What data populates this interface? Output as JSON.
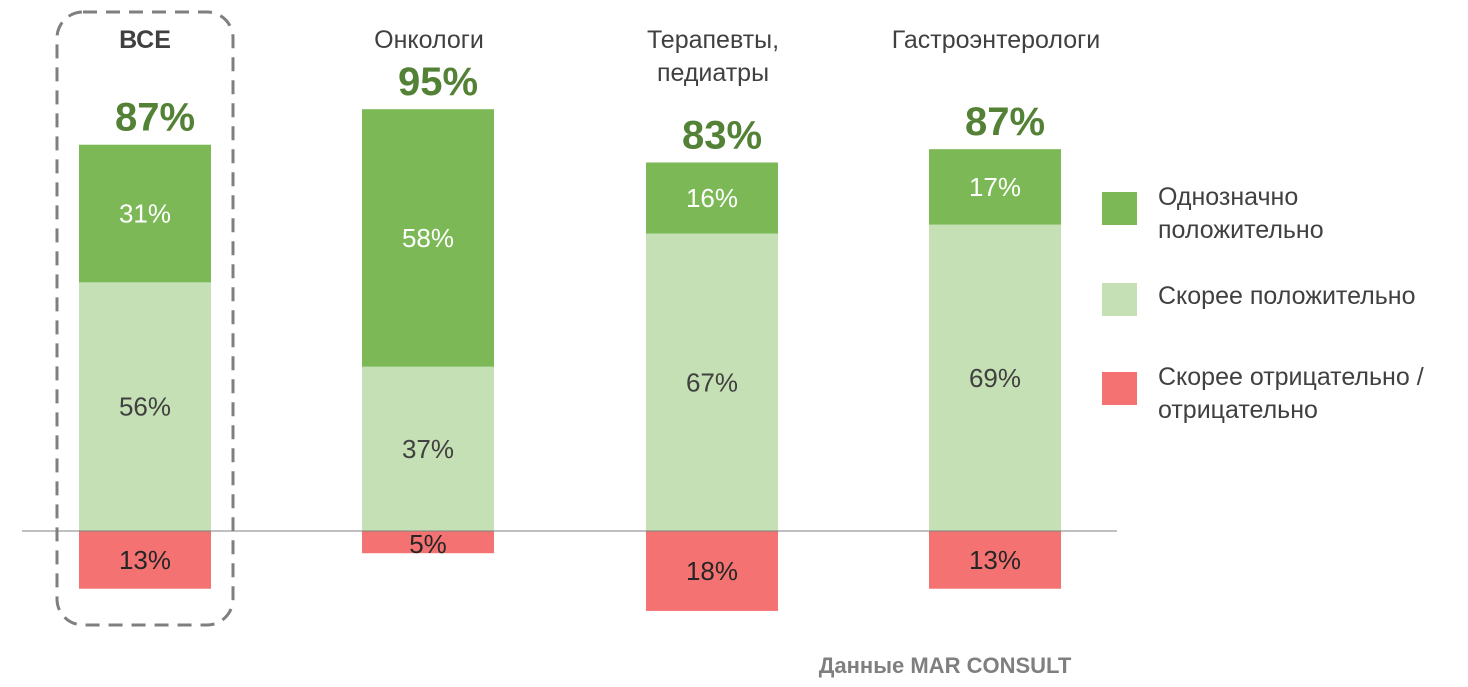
{
  "chart_data": {
    "type": "bar",
    "stacked": true,
    "categories": [
      [
        "ВСЕ"
      ],
      [
        "Онкологи"
      ],
      [
        "Терапевты,",
        "педиатры"
      ],
      [
        "Гастроэнтерологи"
      ]
    ],
    "highlighted_category": 0,
    "totals": [
      "87%",
      "95%",
      "83%",
      "87%"
    ],
    "series": [
      {
        "name": [
          "Однозначно",
          "положительно"
        ],
        "color": "#7cb956",
        "text_color": "#ffffff",
        "values": [
          31,
          58,
          16,
          17
        ],
        "labels": [
          "31%",
          "58%",
          "16%",
          "17%"
        ]
      },
      {
        "name": [
          "Скорее положительно"
        ],
        "color": "#c5e0b4",
        "text_color": "#404040",
        "values": [
          56,
          37,
          67,
          69
        ],
        "labels": [
          "56%",
          "37%",
          "67%",
          "69%"
        ]
      },
      {
        "name": [
          "Скорее отрицательно /",
          "отрицательно"
        ],
        "color": "#f47272",
        "text_color": "#262626",
        "values": [
          -13,
          -5,
          -18,
          -13
        ],
        "labels": [
          "13%",
          "5%",
          "18%",
          "13%"
        ]
      }
    ],
    "total_color": "#538135",
    "baseline_color": "#808080",
    "highlight_border_color": "#7f7f7f",
    "legend_position": "right",
    "grid": false
  },
  "source": "Данные MAR CONSULT"
}
